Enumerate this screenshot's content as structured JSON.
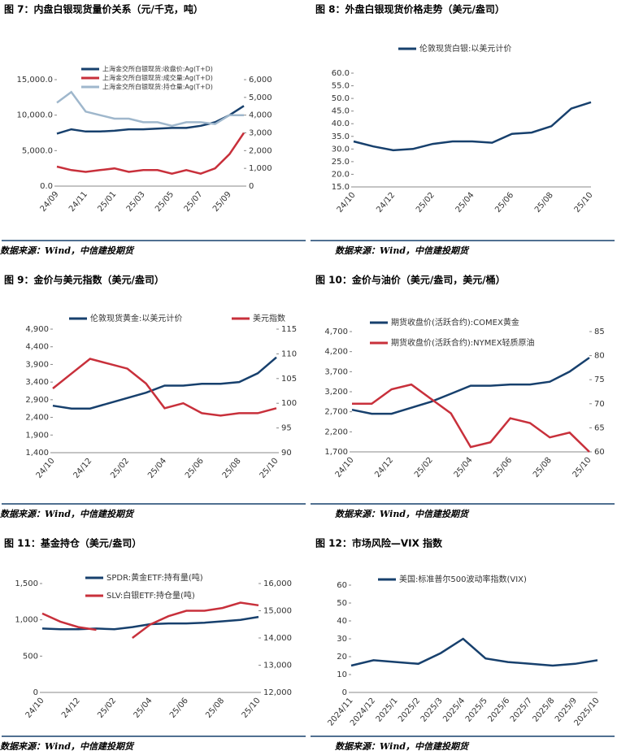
{
  "chart_data": [
    {
      "type": "line",
      "title": "图 7：内盘白银现货量价关系（元/千克，吨）",
      "source": "数据来源：Wind，中信建投期货",
      "categories": [
        "24/09",
        null,
        "24/11",
        null,
        "25/01",
        null,
        "25/03",
        null,
        "25/05",
        null,
        "25/07",
        null,
        "25/09",
        null
      ],
      "series": [
        {
          "name": "上海金交所白银现货:收盘价:Ag(T+D)",
          "color": "#17406d",
          "values": [
            7400,
            8000,
            7700,
            7700,
            7800,
            8000,
            8000,
            8100,
            8200,
            8200,
            8500,
            9000,
            10000,
            11300
          ]
        },
        {
          "name": "上海金交所白银现货:成交量:Ag(T+D)",
          "color": "#c8303b",
          "axis": "y2",
          "values": [
            1100,
            900,
            800,
            900,
            1000,
            800,
            900,
            900,
            700,
            900,
            700,
            1000,
            1800,
            3000
          ]
        },
        {
          "name": "上海金交所白银现货:持仓量:Ag(T+D)",
          "color": "#9fb7cc",
          "axis": "y2",
          "values": [
            4700,
            5300,
            4200,
            4000,
            3800,
            3800,
            3600,
            3600,
            3400,
            3600,
            3600,
            3500,
            4000,
            4000
          ]
        }
      ],
      "ylim": [
        0,
        15000
      ],
      "yticks": [
        {
          "value": 0,
          "label": "0.0"
        },
        {
          "value": 5000,
          "label": "5,000.0"
        },
        {
          "value": 10000,
          "label": "10,000.0"
        },
        {
          "value": 15000,
          "label": "15,000.0"
        }
      ],
      "y2lim": [
        0,
        6000
      ],
      "y2ticks": [
        0,
        {
          "value": 1000,
          "label": "1,000"
        },
        {
          "value": 2000,
          "label": "2,000"
        },
        {
          "value": 3000,
          "label": "3,000"
        },
        {
          "value": 4000,
          "label": "4,000"
        },
        {
          "value": 5000,
          "label": "5,000"
        },
        {
          "value": 6000,
          "label": "6,000"
        }
      ]
    },
    {
      "type": "line",
      "title": "图 8：外盘白银现货价格走势（美元/盎司）",
      "source": "数据来源：Wind，中信建投期货",
      "categories": [
        "24/10",
        null,
        "24/12",
        null,
        "25/02",
        null,
        "25/04",
        null,
        "25/06",
        null,
        "25/08",
        null,
        "25/10"
      ],
      "series": [
        {
          "name": "伦敦现货白银:以美元计价",
          "color": "#17406d",
          "values": [
            33,
            31,
            29.5,
            30,
            32,
            33,
            33,
            32.5,
            36,
            36.5,
            39,
            46,
            48.5
          ]
        }
      ],
      "ylim": [
        15,
        60
      ],
      "yticks": [
        {
          "value": 15,
          "label": "15.0"
        },
        {
          "value": 20,
          "label": "20.0"
        },
        {
          "value": 25,
          "label": "25.0"
        },
        {
          "value": 30,
          "label": "30.0"
        },
        {
          "value": 35,
          "label": "35.0"
        },
        {
          "value": 40,
          "label": "40.0"
        },
        {
          "value": 45,
          "label": "45.0"
        },
        {
          "value": 50,
          "label": "50.0"
        },
        {
          "value": 55,
          "label": "55.0"
        },
        {
          "value": 60,
          "label": "60.0"
        }
      ]
    },
    {
      "type": "line",
      "title": "图 9：金价与美元指数（美元/盎司）",
      "source": "数据来源：Wind，中信建投期货",
      "categories": [
        "24/10",
        null,
        "24/12",
        null,
        "25/02",
        null,
        "25/04",
        null,
        "25/06",
        null,
        "25/08",
        null,
        "25/10"
      ],
      "series": [
        {
          "name": "伦敦现货黄金:以美元计价",
          "color": "#17406d",
          "values": [
            2730,
            2650,
            2650,
            2800,
            2950,
            3100,
            3300,
            3300,
            3350,
            3350,
            3400,
            3650,
            4100
          ]
        },
        {
          "name": "美元指数",
          "color": "#c8303b",
          "axis": "y2",
          "values": [
            103,
            106,
            109,
            108,
            107,
            104,
            99,
            100,
            98,
            97.5,
            98,
            98,
            99
          ]
        }
      ],
      "ylim": [
        1400,
        4900
      ],
      "yticks": [
        {
          "value": 1400,
          "label": "1,400"
        },
        {
          "value": 1900,
          "label": "1,900"
        },
        {
          "value": 2400,
          "label": "2,400"
        },
        {
          "value": 2900,
          "label": "2,900"
        },
        {
          "value": 3400,
          "label": "3,400"
        },
        {
          "value": 3900,
          "label": "3,900"
        },
        {
          "value": 4400,
          "label": "4,400"
        },
        {
          "value": 4900,
          "label": "4,900"
        }
      ],
      "y2lim": [
        90,
        115
      ],
      "y2ticks": [
        90,
        95,
        100,
        105,
        110,
        115
      ]
    },
    {
      "type": "line",
      "title": "图 10：金价与油价（美元/盎司，美元/桶）",
      "source": "数据来源：Wind，中信建投期货",
      "categories": [
        "24/10",
        null,
        "24/12",
        null,
        "25/02",
        null,
        "25/04",
        null,
        "25/06",
        null,
        "25/08",
        null,
        "25/10"
      ],
      "series": [
        {
          "name": "期货收盘价(活跃合约):COMEX黄金",
          "color": "#17406d",
          "values": [
            2750,
            2650,
            2650,
            2800,
            2950,
            3150,
            3350,
            3350,
            3380,
            3380,
            3450,
            3700,
            4050
          ]
        },
        {
          "name": "期货收盘价(活跃合约):NYMEX轻质原油",
          "color": "#c8303b",
          "axis": "y2",
          "values": [
            70,
            70,
            73,
            74,
            71,
            68,
            61,
            62,
            67,
            66,
            63,
            64,
            60
          ]
        }
      ],
      "ylim": [
        1700,
        4700
      ],
      "yticks": [
        {
          "value": 1700,
          "label": "1,700"
        },
        {
          "value": 2200,
          "label": "2,200"
        },
        {
          "value": 2700,
          "label": "2,700"
        },
        {
          "value": 3200,
          "label": "3,200"
        },
        {
          "value": 3700,
          "label": "3,700"
        },
        {
          "value": 4200,
          "label": "4,200"
        },
        {
          "value": 4700,
          "label": "4,700"
        }
      ],
      "y2lim": [
        60,
        85
      ],
      "y2ticks": [
        60,
        65,
        70,
        75,
        80,
        85
      ]
    },
    {
      "type": "line",
      "title": "图 11：基金持仓（美元/盎司）",
      "source": "数据来源：Wind，中信建投期货",
      "categories": [
        "24/10",
        null,
        "24/12",
        null,
        "25/02",
        null,
        "25/04",
        null,
        "25/06",
        null,
        "25/08",
        null,
        "25/10"
      ],
      "series": [
        {
          "name": "SPDR:黄金ETF:持有量(吨)",
          "color": "#17406d",
          "values": [
            880,
            870,
            870,
            880,
            870,
            900,
            940,
            950,
            950,
            960,
            980,
            1000,
            1040
          ]
        },
        {
          "name": "SLV:白银ETF:持仓量(吨)",
          "color": "#c8303b",
          "axis": "y2",
          "values": [
            14900,
            14600,
            14400,
            14300,
            null,
            14000,
            14500,
            14800,
            15000,
            15000,
            15100,
            15300,
            15200
          ]
        }
      ],
      "ylim": [
        0,
        1500
      ],
      "yticks": [
        0,
        500,
        {
          "value": 1000,
          "label": "1,000"
        },
        {
          "value": 1500,
          "label": "1,500"
        }
      ],
      "y2lim": [
        12000,
        16000
      ],
      "y2ticks": [
        {
          "value": 12000,
          "label": "12,000"
        },
        {
          "value": 13000,
          "label": "13,000"
        },
        {
          "value": 14000,
          "label": "14,000"
        },
        {
          "value": 15000,
          "label": "15,000"
        },
        {
          "value": 16000,
          "label": "16,000"
        }
      ]
    },
    {
      "type": "line",
      "title": "图 12：市场风险—VIX 指数",
      "source": "数据来源：Wind，中信建投期货",
      "categories": [
        "2024/11",
        "2024/12",
        "2025/1",
        "2025/2",
        "2025/3",
        "2025/4",
        "2025/5",
        "2025/6",
        "2025/7",
        "2025/8",
        "2025/9",
        "2025/10"
      ],
      "series": [
        {
          "name": "美国:标准普尔500波动率指数(VIX)",
          "color": "#17406d",
          "values": [
            15,
            18,
            17,
            16,
            22,
            30,
            19,
            17,
            16,
            15,
            16,
            18
          ]
        }
      ],
      "ylim": [
        0,
        60
      ],
      "yticks": [
        0,
        10,
        20,
        30,
        40,
        50,
        60
      ]
    }
  ]
}
